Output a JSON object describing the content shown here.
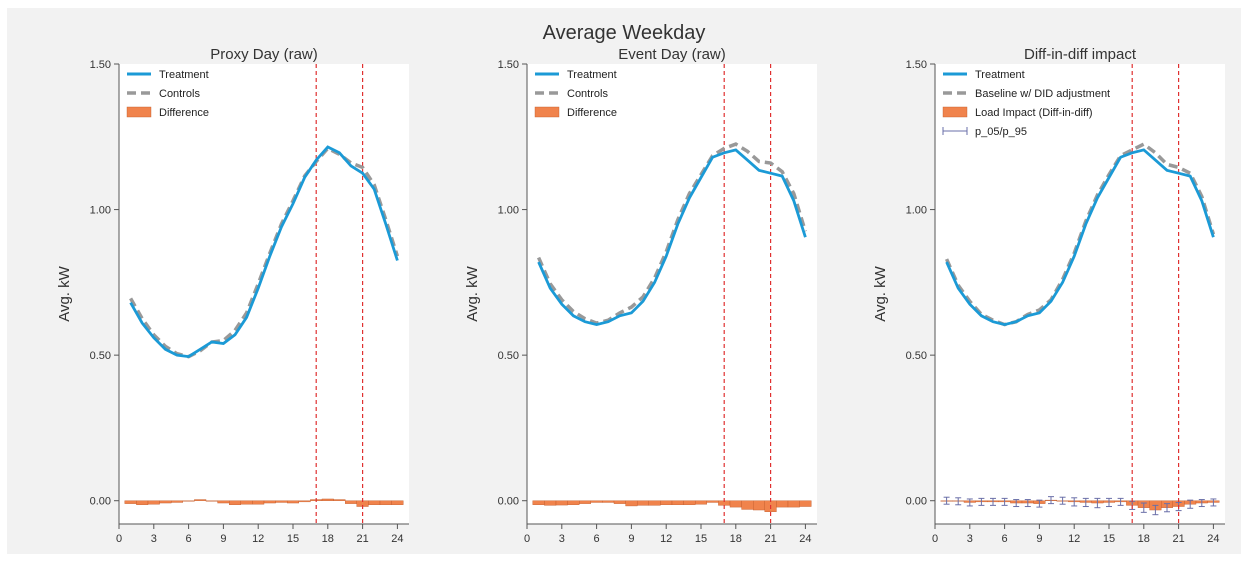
{
  "suptitle": "Average Weekday",
  "colors": {
    "treatment": "#1b9ad6",
    "control": "#999999",
    "bar": "#f0834c",
    "bar_edge": "#c05a2a",
    "event": "#e03030",
    "errorbar": "#6a6fa8"
  },
  "chart_data": [
    {
      "type": "line",
      "title": "Proxy Day (raw)",
      "xlabel": "",
      "ylabel": "Avg. kW",
      "xlim": [
        0,
        25
      ],
      "ylim": [
        -0.08,
        1.5
      ],
      "xticks": [
        0,
        3,
        6,
        9,
        12,
        15,
        18,
        21,
        24
      ],
      "yticks": [
        0.0,
        0.5,
        1.0,
        1.5
      ],
      "ytick_labels": [
        "0.00",
        "0.50",
        "1.00",
        "1.50"
      ],
      "vlines": [
        17,
        21
      ],
      "legend_loc": "upper-left",
      "legend": [
        "Treatment",
        "Controls",
        "Difference"
      ],
      "x": [
        1,
        2,
        3,
        4,
        5,
        6,
        7,
        8,
        9,
        10,
        11,
        12,
        13,
        14,
        15,
        16,
        17,
        18,
        19,
        20,
        21,
        22,
        23,
        24
      ],
      "series": [
        {
          "name": "Treatment",
          "style": "solid",
          "values": [
            0.68,
            0.61,
            0.56,
            0.52,
            0.5,
            0.495,
            0.52,
            0.545,
            0.54,
            0.57,
            0.63,
            0.73,
            0.84,
            0.94,
            1.02,
            1.11,
            1.17,
            1.215,
            1.195,
            1.15,
            1.125,
            1.07,
            0.95,
            0.825
          ]
        },
        {
          "name": "Controls",
          "style": "dashed",
          "values": [
            0.695,
            0.625,
            0.57,
            0.53,
            0.505,
            0.495,
            0.515,
            0.545,
            0.55,
            0.585,
            0.645,
            0.745,
            0.85,
            0.95,
            1.03,
            1.115,
            1.165,
            1.21,
            1.19,
            1.16,
            1.145,
            1.085,
            0.965,
            0.84
          ]
        }
      ],
      "bars": {
        "name": "Difference",
        "values": [
          -0.01,
          -0.014,
          -0.012,
          -0.008,
          -0.006,
          0.0,
          0.004,
          0.0,
          -0.008,
          -0.014,
          -0.012,
          -0.012,
          -0.008,
          -0.006,
          -0.008,
          -0.004,
          0.004,
          0.006,
          0.004,
          -0.01,
          -0.02,
          -0.014,
          -0.014,
          -0.014
        ]
      }
    },
    {
      "type": "line",
      "title": "Event Day (raw)",
      "xlabel": "",
      "ylabel": "Avg. kW",
      "xlim": [
        0,
        25
      ],
      "ylim": [
        -0.08,
        1.5
      ],
      "xticks": [
        0,
        3,
        6,
        9,
        12,
        15,
        18,
        21,
        24
      ],
      "yticks": [
        0.0,
        0.5,
        1.0,
        1.5
      ],
      "ytick_labels": [
        "0.00",
        "0.50",
        "1.00",
        "1.50"
      ],
      "vlines": [
        17,
        21
      ],
      "legend_loc": "upper-left",
      "legend": [
        "Treatment",
        "Controls",
        "Difference"
      ],
      "x": [
        1,
        2,
        3,
        4,
        5,
        6,
        7,
        8,
        9,
        10,
        11,
        12,
        13,
        14,
        15,
        16,
        17,
        18,
        19,
        20,
        21,
        22,
        23,
        24
      ],
      "series": [
        {
          "name": "Treatment",
          "style": "solid",
          "values": [
            0.82,
            0.73,
            0.675,
            0.635,
            0.615,
            0.605,
            0.615,
            0.635,
            0.645,
            0.685,
            0.75,
            0.84,
            0.95,
            1.04,
            1.11,
            1.18,
            1.195,
            1.205,
            1.17,
            1.135,
            1.125,
            1.115,
            1.03,
            0.905
          ]
        },
        {
          "name": "Controls",
          "style": "dashed",
          "values": [
            0.835,
            0.745,
            0.69,
            0.65,
            0.625,
            0.61,
            0.62,
            0.645,
            0.665,
            0.7,
            0.765,
            0.855,
            0.965,
            1.055,
            1.12,
            1.185,
            1.21,
            1.225,
            1.2,
            1.165,
            1.16,
            1.13,
            1.055,
            0.925
          ]
        }
      ],
      "bars": {
        "name": "Difference",
        "values": [
          -0.014,
          -0.016,
          -0.015,
          -0.014,
          -0.01,
          -0.006,
          -0.006,
          -0.01,
          -0.018,
          -0.016,
          -0.016,
          -0.014,
          -0.014,
          -0.014,
          -0.012,
          -0.006,
          -0.016,
          -0.022,
          -0.03,
          -0.032,
          -0.038,
          -0.022,
          -0.022,
          -0.02
        ]
      }
    },
    {
      "type": "line",
      "title": "Diff-in-diff impact",
      "xlabel": "",
      "ylabel": "Avg. kW",
      "xlim": [
        0,
        25
      ],
      "ylim": [
        -0.08,
        1.5
      ],
      "xticks": [
        0,
        3,
        6,
        9,
        12,
        15,
        18,
        21,
        24
      ],
      "yticks": [
        0.0,
        0.5,
        1.0,
        1.5
      ],
      "ytick_labels": [
        "0.00",
        "0.50",
        "1.00",
        "1.50"
      ],
      "vlines": [
        17,
        21
      ],
      "legend_loc": "upper-left",
      "legend": [
        "Treatment",
        "Baseline w/ DID adjustment",
        "Load Impact (Diff-in-diff)",
        "p_05/p_95"
      ],
      "x": [
        1,
        2,
        3,
        4,
        5,
        6,
        7,
        8,
        9,
        10,
        11,
        12,
        13,
        14,
        15,
        16,
        17,
        18,
        19,
        20,
        21,
        22,
        23,
        24
      ],
      "series": [
        {
          "name": "Treatment",
          "style": "solid",
          "values": [
            0.82,
            0.73,
            0.675,
            0.635,
            0.615,
            0.605,
            0.615,
            0.635,
            0.645,
            0.685,
            0.75,
            0.84,
            0.95,
            1.04,
            1.11,
            1.18,
            1.195,
            1.205,
            1.17,
            1.135,
            1.125,
            1.115,
            1.03,
            0.905
          ]
        },
        {
          "name": "Baseline w/ DID adjustment",
          "style": "dashed",
          "values": [
            0.83,
            0.74,
            0.685,
            0.64,
            0.62,
            0.605,
            0.615,
            0.64,
            0.655,
            0.69,
            0.76,
            0.85,
            0.96,
            1.05,
            1.12,
            1.185,
            1.205,
            1.225,
            1.195,
            1.155,
            1.145,
            1.125,
            1.045,
            0.915
          ]
        }
      ],
      "bars": {
        "name": "Load Impact (Diff-in-diff)",
        "values": [
          0.0,
          -0.002,
          -0.006,
          -0.004,
          -0.004,
          -0.004,
          -0.008,
          -0.008,
          -0.01,
          0.002,
          0.0,
          -0.004,
          -0.006,
          -0.008,
          -0.006,
          -0.004,
          -0.016,
          -0.024,
          -0.032,
          -0.024,
          -0.02,
          -0.012,
          -0.008,
          -0.006
        ]
      },
      "errorbars": {
        "name": "p_05/p_95",
        "low": [
          -0.012,
          -0.014,
          -0.018,
          -0.016,
          -0.016,
          -0.016,
          -0.02,
          -0.02,
          -0.022,
          -0.01,
          -0.012,
          -0.018,
          -0.02,
          -0.024,
          -0.02,
          -0.016,
          -0.03,
          -0.04,
          -0.048,
          -0.038,
          -0.034,
          -0.026,
          -0.02,
          -0.018
        ],
        "high": [
          0.012,
          0.01,
          0.006,
          0.008,
          0.008,
          0.008,
          0.004,
          0.004,
          0.002,
          0.014,
          0.012,
          0.01,
          0.008,
          0.008,
          0.008,
          0.008,
          -0.002,
          -0.008,
          -0.016,
          -0.01,
          -0.006,
          0.002,
          0.004,
          0.006
        ]
      }
    }
  ]
}
